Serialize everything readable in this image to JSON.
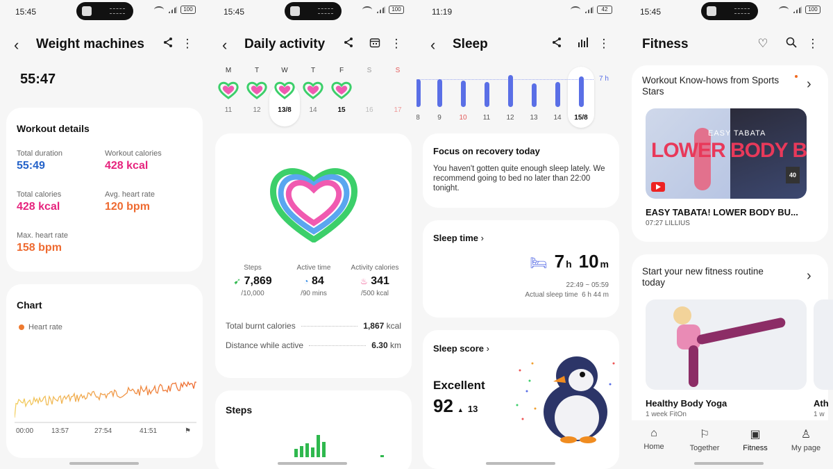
{
  "s1": {
    "status_time": "15:45",
    "battery": "100",
    "title": "Weight machines",
    "elapsed": "55:47",
    "details_title": "Workout details",
    "details": [
      {
        "label": "Total duration",
        "value": "55:49",
        "color": "#2563c9"
      },
      {
        "label": "Workout calories",
        "value": "428 kcal",
        "color": "#e6237d"
      },
      {
        "label": "Total calories",
        "value": "428 kcal",
        "color": "#e6237d"
      },
      {
        "label": "Avg. heart rate",
        "value": "120 bpm",
        "color": "#ee6a30"
      },
      {
        "label": "Max. heart rate",
        "value": "158 bpm",
        "color": "#ee6a30"
      }
    ],
    "chart_title": "Chart",
    "legend": "Heart rate",
    "x_ticks": [
      "00:00",
      "13:57",
      "27:54",
      "41:51"
    ]
  },
  "s2": {
    "status_time": "15:45",
    "battery": "100",
    "title": "Daily activity",
    "days": [
      "M",
      "T",
      "W",
      "T",
      "F",
      "S",
      "S"
    ],
    "dates": [
      "11",
      "12",
      "13/8",
      "14",
      "15",
      "16",
      "17"
    ],
    "stats": [
      {
        "label": "Steps",
        "value": "7,869",
        "goal": "/10,000",
        "icon": "shoe-icon"
      },
      {
        "label": "Active time",
        "value": "84",
        "goal": "/90 mins",
        "icon": "clock-icon"
      },
      {
        "label": "Activity calories",
        "value": "341",
        "goal": "/500 kcal",
        "icon": "flame-icon"
      }
    ],
    "rows": [
      {
        "label": "Total burnt calories",
        "value": "1,867",
        "unit": "kcal"
      },
      {
        "label": "Distance while active",
        "value": "6.30",
        "unit": "km"
      }
    ],
    "steps_title": "Steps"
  },
  "s3": {
    "status_time": "11:19",
    "battery": "42",
    "title": "Sleep",
    "goal_label": "7 h",
    "dates": [
      "8",
      "9",
      "10",
      "11",
      "12",
      "13",
      "14",
      "15/8"
    ],
    "recovery_title": "Focus on recovery today",
    "recovery_text": "You haven't gotten quite enough sleep lately. We recommend going to bed no later than 22:00 tonight.",
    "sleep_time_title": "Sleep time",
    "sleep_h": "7",
    "sleep_h_unit": "h",
    "sleep_m": "10",
    "sleep_m_unit": "m",
    "sleep_range": "22:49 ~ 05:59",
    "actual_label": "Actual sleep time",
    "actual_value": "6 h 44 m",
    "score_title": "Sleep score",
    "score_word": "Excellent",
    "score": "92",
    "score_delta": "13"
  },
  "s4": {
    "status_time": "15:45",
    "battery": "100",
    "title": "Fitness",
    "card1_title": "Workout Know-hows from Sports Stars",
    "video_overlay_small": "EASY TABATA",
    "video_overlay_big": "LOWER BODY BURN",
    "video_badge": "40",
    "video_title": "EASY TABATA! LOWER BODY BU...",
    "video_meta": "07:27 LILLIUS",
    "card2_title": "Start your new fitness routine today",
    "program_title": "Healthy Body Yoga",
    "program_meta": "1 week FitOn",
    "program_peek": "Ath",
    "program_peek_meta": "1 w",
    "nav": [
      "Home",
      "Together",
      "Fitness",
      "My page"
    ]
  }
}
